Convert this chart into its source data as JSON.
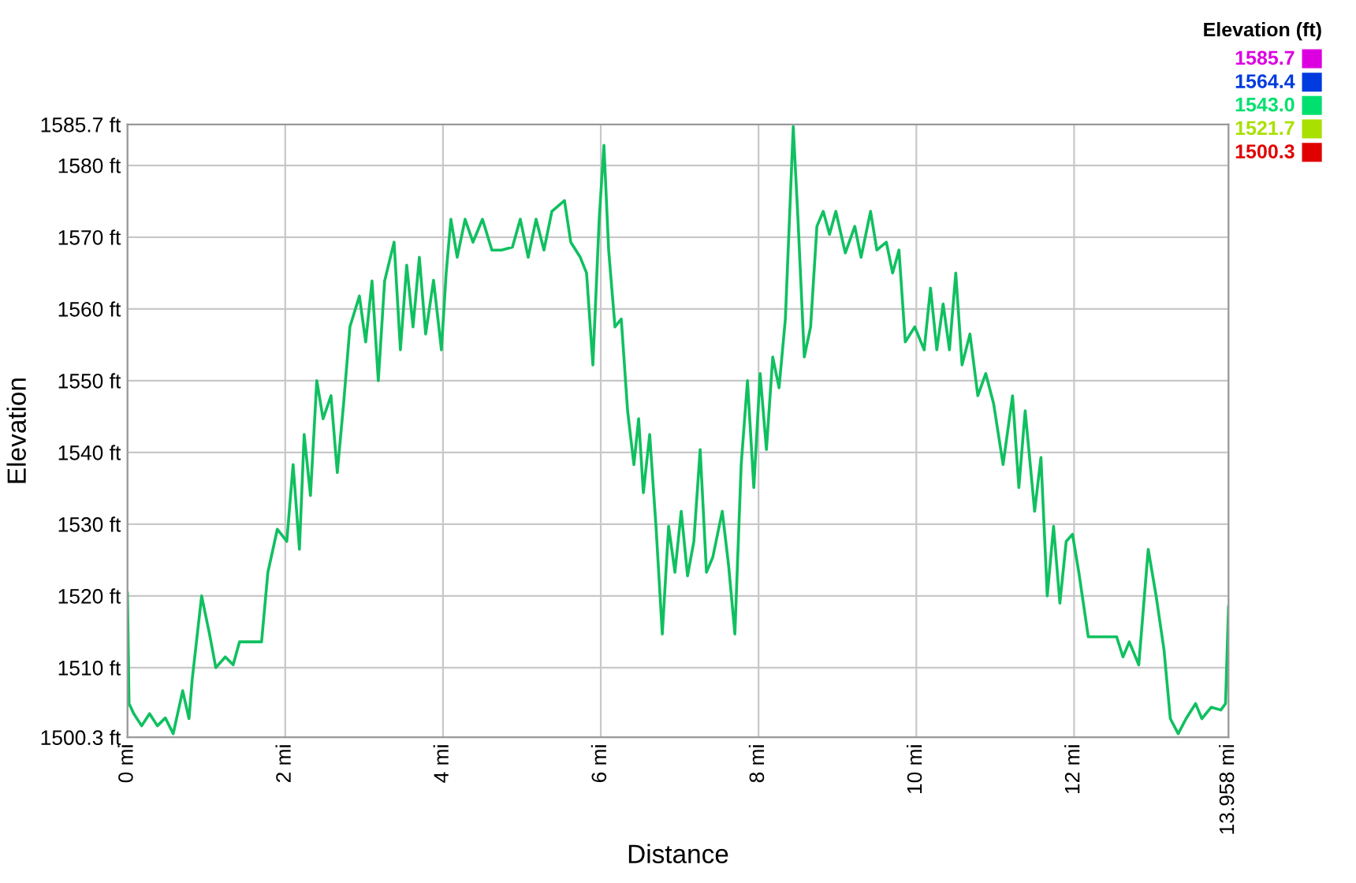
{
  "chart_data": {
    "type": "line",
    "xlabel": "Distance",
    "ylabel": "Elevation",
    "clabel": "Elevation (ft)",
    "clim": [
      1500.3,
      1585.7
    ],
    "cticks": [
      {
        "value": 1585.7,
        "label": "1585.7"
      },
      {
        "value": 1564.4,
        "label": "1564.4"
      },
      {
        "value": 1543.0,
        "label": "1543.0"
      },
      {
        "value": 1521.7,
        "label": "1521.7"
      },
      {
        "value": 1500.3,
        "label": "1500.3"
      }
    ],
    "xlim": [
      0,
      13.958
    ],
    "ylim": [
      1500.3,
      1585.7
    ],
    "xticks": [
      {
        "value": 0,
        "label": "0 mi"
      },
      {
        "value": 2,
        "label": "2 mi"
      },
      {
        "value": 4,
        "label": "4 mi"
      },
      {
        "value": 6,
        "label": "6 mi"
      },
      {
        "value": 8,
        "label": "8 mi"
      },
      {
        "value": 10,
        "label": "10 mi"
      },
      {
        "value": 12,
        "label": "12 mi"
      },
      {
        "value": 13.958,
        "label": "13.958 mi"
      }
    ],
    "yticks": [
      {
        "value": 1500.3,
        "label": "1500.3 ft"
      },
      {
        "value": 1510,
        "label": "1510 ft"
      },
      {
        "value": 1520,
        "label": "1520 ft"
      },
      {
        "value": 1530,
        "label": "1530 ft"
      },
      {
        "value": 1540,
        "label": "1540 ft"
      },
      {
        "value": 1550,
        "label": "1550 ft"
      },
      {
        "value": 1560,
        "label": "1560 ft"
      },
      {
        "value": 1570,
        "label": "1570 ft"
      },
      {
        "value": 1580,
        "label": "1580 ft"
      },
      {
        "value": 1585.7,
        "label": "1585.7 ft"
      }
    ],
    "grid": true,
    "color": "#10c060",
    "marker": "none",
    "line_style": "solid",
    "x": [
      0,
      0.02,
      0.08,
      0.18,
      0.28,
      0.38,
      0.48,
      0.58,
      0.7,
      0.78,
      0.82,
      0.94,
      1.04,
      1.12,
      1.24,
      1.34,
      1.42,
      1.7,
      1.78,
      1.9,
      2.02,
      2.1,
      2.18,
      2.24,
      2.32,
      2.4,
      2.48,
      2.58,
      2.66,
      2.74,
      2.82,
      2.94,
      3.02,
      3.1,
      3.18,
      3.26,
      3.38,
      3.46,
      3.54,
      3.62,
      3.7,
      3.78,
      3.88,
      3.98,
      4.04,
      4.1,
      4.18,
      4.28,
      4.38,
      4.5,
      4.62,
      4.74,
      4.88,
      4.98,
      5.08,
      5.18,
      5.28,
      5.38,
      5.54,
      5.62,
      5.74,
      5.82,
      5.9,
      5.98,
      6.04,
      6.1,
      6.18,
      6.26,
      6.34,
      6.42,
      6.48,
      6.54,
      6.62,
      6.7,
      6.78,
      6.86,
      6.94,
      7.02,
      7.1,
      7.18,
      7.26,
      7.34,
      7.42,
      7.54,
      7.62,
      7.7,
      7.78,
      7.86,
      7.94,
      8.02,
      8.1,
      8.18,
      8.26,
      8.34,
      8.44,
      8.5,
      8.58,
      8.66,
      8.74,
      8.82,
      8.9,
      8.98,
      9.1,
      9.22,
      9.3,
      9.42,
      9.5,
      9.62,
      9.7,
      9.78,
      9.86,
      9.98,
      10.1,
      10.18,
      10.26,
      10.34,
      10.42,
      10.5,
      10.58,
      10.68,
      10.78,
      10.88,
      10.98,
      11.1,
      11.22,
      11.3,
      11.38,
      11.5,
      11.58,
      11.66,
      11.74,
      11.82,
      11.9,
      11.98,
      12.06,
      12.18,
      12.54,
      12.62,
      12.7,
      12.82,
      12.94,
      13.04,
      13.14,
      13.22,
      13.32,
      13.42,
      13.54,
      13.62,
      13.74,
      13.86,
      13.92,
      13.958
    ],
    "values": [
      1520.5,
      1505,
      1503.6,
      1501.9,
      1503.6,
      1501.9,
      1503,
      1500.8,
      1506.8,
      1502.9,
      1508.3,
      1520,
      1514.7,
      1510,
      1511.5,
      1510.4,
      1513.6,
      1513.6,
      1523.3,
      1529.3,
      1527.6,
      1538.3,
      1526.5,
      1542.5,
      1534,
      1550,
      1544.7,
      1547.9,
      1537.2,
      1546.8,
      1557.5,
      1561.8,
      1555.4,
      1563.9,
      1550,
      1563.9,
      1569.3,
      1554.3,
      1566.1,
      1557.5,
      1567.2,
      1556.5,
      1564,
      1554.3,
      1565,
      1572.5,
      1567.2,
      1572.5,
      1569.3,
      1572.5,
      1568.2,
      1568.2,
      1568.6,
      1572.5,
      1567.2,
      1572.5,
      1568.2,
      1573.6,
      1575.1,
      1569.3,
      1567.2,
      1565,
      1552.2,
      1572.5,
      1582.8,
      1568.2,
      1557.5,
      1558.6,
      1545.8,
      1538.3,
      1544.7,
      1534.4,
      1542.5,
      1529.7,
      1514.7,
      1529.7,
      1523.3,
      1531.8,
      1522.8,
      1527.6,
      1540.4,
      1523.3,
      1525.4,
      1531.8,
      1524.3,
      1514.7,
      1538.3,
      1550,
      1535.1,
      1551,
      1540.4,
      1553.3,
      1549,
      1558.6,
      1585.4,
      1572.5,
      1553.3,
      1557.5,
      1571.5,
      1573.6,
      1570.4,
      1573.6,
      1567.8,
      1571.5,
      1567.2,
      1573.6,
      1568.2,
      1569.3,
      1565,
      1568.2,
      1555.4,
      1557.5,
      1554.3,
      1562.9,
      1554.3,
      1560.7,
      1554.3,
      1565,
      1552.2,
      1556.5,
      1547.9,
      1551,
      1546.8,
      1538.3,
      1547.9,
      1535.1,
      1545.8,
      1531.8,
      1539.3,
      1520,
      1529.7,
      1519,
      1527.6,
      1528.6,
      1523.3,
      1514.3,
      1514.3,
      1511.5,
      1513.6,
      1510.4,
      1526.5,
      1520,
      1512.5,
      1502.9,
      1500.8,
      1502.9,
      1505,
      1502.9,
      1504.5,
      1504.1,
      1505,
      1518.6
    ]
  }
}
